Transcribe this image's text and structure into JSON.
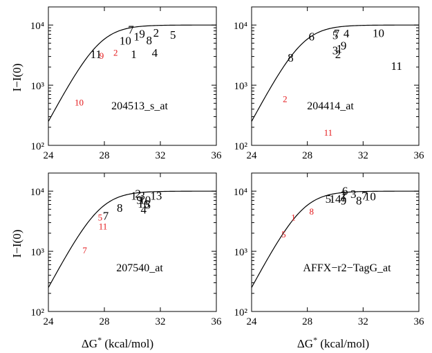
{
  "figure": {
    "shared_ylabel": "I−I(0)",
    "shared_xlabel_prefix": "ΔG",
    "shared_xlabel_superscript": "*",
    "shared_xlabel_suffix": " (kcal/mol)",
    "colors": {
      "default": "#000000",
      "highlight": "#e41a1c"
    }
  },
  "chart_data": [
    {
      "type": "scatter",
      "title": "204513_s_at",
      "xlabel": "ΔG* (kcal/mol)",
      "ylabel": "I−I(0)",
      "xlim": [
        24,
        36
      ],
      "ylim": [
        100,
        20000
      ],
      "yscale": "log",
      "xticks": [
        24,
        28,
        32,
        36
      ],
      "yticks": [
        "10²",
        "10³",
        "10⁴"
      ],
      "fit_curve": {
        "type": "saturating",
        "plateau": 10000,
        "approx_value_at_x24": 250
      },
      "points": [
        {
          "label": "7",
          "x": 29.9,
          "y": 8500,
          "color": "black"
        },
        {
          "label": "10",
          "x": 29.5,
          "y": 5500,
          "color": "black"
        },
        {
          "label": "1",
          "x": 30.3,
          "y": 6500,
          "color": "black"
        },
        {
          "label": "9",
          "x": 30.7,
          "y": 7200,
          "color": "black"
        },
        {
          "label": "2",
          "x": 31.7,
          "y": 7500,
          "color": "black"
        },
        {
          "label": "8",
          "x": 31.2,
          "y": 5600,
          "color": "black"
        },
        {
          "label": "5",
          "x": 32.9,
          "y": 6900,
          "color": "black"
        },
        {
          "label": "11",
          "x": 27.4,
          "y": 3300,
          "color": "black"
        },
        {
          "label": "9",
          "x": 27.8,
          "y": 3200,
          "color": "red"
        },
        {
          "label": "2",
          "x": 28.8,
          "y": 3600,
          "color": "red"
        },
        {
          "label": "1",
          "x": 30.1,
          "y": 3300,
          "color": "black"
        },
        {
          "label": "4",
          "x": 31.6,
          "y": 3500,
          "color": "black"
        },
        {
          "label": "10",
          "x": 26.2,
          "y": 540,
          "color": "red"
        }
      ]
    },
    {
      "type": "scatter",
      "title": "204414_at",
      "xlabel": "ΔG* (kcal/mol)",
      "ylabel": "I−I(0)",
      "xlim": [
        24,
        36
      ],
      "ylim": [
        100,
        20000
      ],
      "yscale": "log",
      "xticks": [
        24,
        28,
        32,
        36
      ],
      "yticks": [
        "10²",
        "10³",
        "10⁴"
      ],
      "fit_curve": {
        "type": "saturating",
        "plateau": 10000,
        "approx_value_at_x24": 250
      },
      "points": [
        {
          "label": "6",
          "x": 28.3,
          "y": 6500,
          "color": "black"
        },
        {
          "label": "5",
          "x": 30.0,
          "y": 6800,
          "color": "black"
        },
        {
          "label": "7",
          "x": 30.1,
          "y": 7300,
          "color": "black"
        },
        {
          "label": "4",
          "x": 30.8,
          "y": 7300,
          "color": "black"
        },
        {
          "label": "10",
          "x": 33.1,
          "y": 7400,
          "color": "black"
        },
        {
          "label": "9",
          "x": 30.6,
          "y": 4600,
          "color": "black"
        },
        {
          "label": "3",
          "x": 30.0,
          "y": 3800,
          "color": "black"
        },
        {
          "label": "1",
          "x": 30.3,
          "y": 4100,
          "color": "black"
        },
        {
          "label": "2",
          "x": 30.2,
          "y": 3300,
          "color": "black"
        },
        {
          "label": "8",
          "x": 26.8,
          "y": 2900,
          "color": "black"
        },
        {
          "label": "11",
          "x": 34.4,
          "y": 2100,
          "color": "black"
        },
        {
          "label": "2",
          "x": 26.4,
          "y": 610,
          "color": "red"
        },
        {
          "label": "11",
          "x": 29.5,
          "y": 170,
          "color": "red"
        }
      ]
    },
    {
      "type": "scatter",
      "title": "207540_at",
      "xlabel": "ΔG* (kcal/mol)",
      "ylabel": "I−I(0)",
      "xlim": [
        24,
        36
      ],
      "ylim": [
        100,
        20000
      ],
      "yscale": "log",
      "xticks": [
        24,
        28,
        32,
        36
      ],
      "yticks": [
        "10²",
        "10³",
        "10⁴"
      ],
      "fit_curve": {
        "type": "saturating",
        "plateau": 10000,
        "approx_value_at_x24": 250
      },
      "points": [
        {
          "label": "1",
          "x": 30.1,
          "y": 8500,
          "color": "black"
        },
        {
          "label": "2",
          "x": 30.4,
          "y": 9200,
          "color": "black"
        },
        {
          "label": "3",
          "x": 30.7,
          "y": 8500,
          "color": "black"
        },
        {
          "label": "13",
          "x": 31.7,
          "y": 8400,
          "color": "black"
        },
        {
          "label": "9",
          "x": 30.5,
          "y": 7200,
          "color": "black"
        },
        {
          "label": "10",
          "x": 30.9,
          "y": 7200,
          "color": "black"
        },
        {
          "label": "16",
          "x": 30.8,
          "y": 6200,
          "color": "black"
        },
        {
          "label": "5",
          "x": 31.1,
          "y": 6000,
          "color": "black"
        },
        {
          "label": "8",
          "x": 29.1,
          "y": 5300,
          "color": "black"
        },
        {
          "label": "4",
          "x": 30.8,
          "y": 5000,
          "color": "black"
        },
        {
          "label": "7",
          "x": 28.1,
          "y": 3900,
          "color": "black"
        },
        {
          "label": "5",
          "x": 27.7,
          "y": 3800,
          "color": "red"
        },
        {
          "label": "11",
          "x": 27.9,
          "y": 2700,
          "color": "red"
        },
        {
          "label": "7",
          "x": 26.6,
          "y": 1080,
          "color": "red"
        }
      ]
    },
    {
      "type": "scatter",
      "title": "AFFX−r2−TagG_at",
      "xlabel": "ΔG* (kcal/mol)",
      "ylabel": "I−I(0)",
      "xlim": [
        24,
        36
      ],
      "ylim": [
        100,
        20000
      ],
      "yscale": "log",
      "xticks": [
        24,
        28,
        32,
        36
      ],
      "yticks": [
        "10²",
        "10³",
        "10⁴"
      ],
      "fit_curve": {
        "type": "saturating",
        "plateau": 10000,
        "approx_value_at_x24": 250
      },
      "points": [
        {
          "label": "6",
          "x": 30.7,
          "y": 10200,
          "color": "black"
        },
        {
          "label": "3",
          "x": 31.3,
          "y": 9000,
          "color": "black"
        },
        {
          "label": "2",
          "x": 30.6,
          "y": 8700,
          "color": "black"
        },
        {
          "label": "1",
          "x": 30.6,
          "y": 8000,
          "color": "black"
        },
        {
          "label": "7",
          "x": 32.1,
          "y": 8400,
          "color": "black"
        },
        {
          "label": "10",
          "x": 32.5,
          "y": 8200,
          "color": "black"
        },
        {
          "label": "5",
          "x": 29.5,
          "y": 7500,
          "color": "black"
        },
        {
          "label": "14",
          "x": 30.0,
          "y": 7500,
          "color": "black"
        },
        {
          "label": "9",
          "x": 30.6,
          "y": 7000,
          "color": "black"
        },
        {
          "label": "8",
          "x": 31.7,
          "y": 7000,
          "color": "black"
        },
        {
          "label": "8",
          "x": 28.3,
          "y": 4800,
          "color": "red"
        },
        {
          "label": "1",
          "x": 27.0,
          "y": 3800,
          "color": "red"
        },
        {
          "label": "5",
          "x": 26.3,
          "y": 2000,
          "color": "red"
        }
      ]
    }
  ]
}
